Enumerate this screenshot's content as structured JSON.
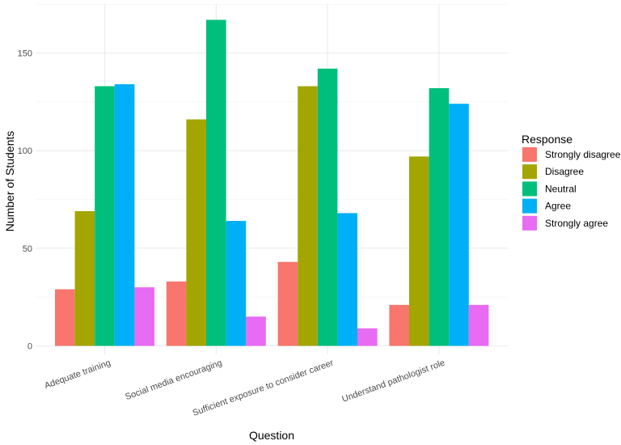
{
  "chart_data": {
    "type": "bar",
    "title": "",
    "xlabel": "Question",
    "ylabel": "Number of Students",
    "ylim": [
      0,
      175
    ],
    "yticks": [
      0,
      50,
      100,
      150
    ],
    "grid": true,
    "legend_title": "Response",
    "legend_position": "right",
    "categories": [
      "Adequate training",
      "Social media encouraging",
      "Sufficient exposure to consider career",
      "Understand pathologist role"
    ],
    "series": [
      {
        "name": "Strongly disagree",
        "color": "#F8766D",
        "values": [
          29,
          33,
          43,
          21
        ]
      },
      {
        "name": "Disagree",
        "color": "#A3A500",
        "values": [
          69,
          116,
          133,
          97
        ]
      },
      {
        "name": "Neutral",
        "color": "#00BF7D",
        "values": [
          133,
          167,
          142,
          132
        ]
      },
      {
        "name": "Agree",
        "color": "#00B0F6",
        "values": [
          134,
          64,
          68,
          124
        ]
      },
      {
        "name": "Strongly agree",
        "color": "#E76BF3",
        "values": [
          30,
          15,
          9,
          21
        ]
      }
    ]
  }
}
